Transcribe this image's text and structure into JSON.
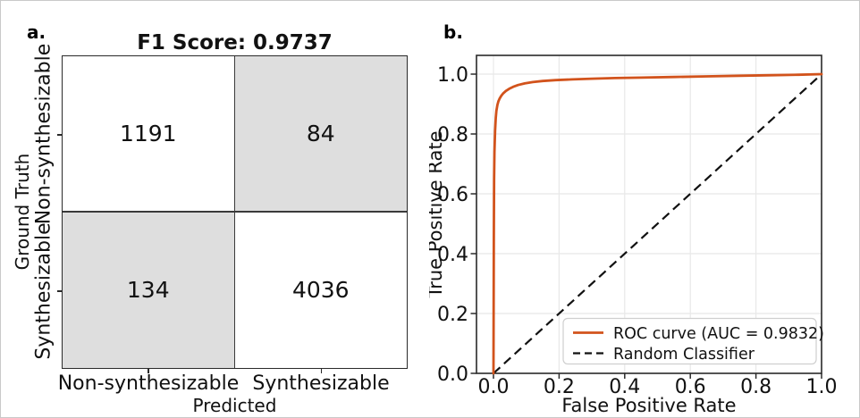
{
  "figure": {
    "panel_a_label": "a.",
    "panel_b_label": "b."
  },
  "chart_data": [
    {
      "type": "heatmap",
      "title": "F1 Score: 0.9737",
      "xlabel": "Predicted",
      "ylabel": "Ground Truth",
      "x_categories": [
        "Non-synthesizable",
        "Synthesizable"
      ],
      "y_categories": [
        "Non-synthesizable",
        "Synthesizable"
      ],
      "values": [
        [
          1191,
          84
        ],
        [
          134,
          4036
        ]
      ],
      "cell_colors": [
        [
          "#ffffff",
          "#dedede"
        ],
        [
          "#dedede",
          "#ffffff"
        ]
      ]
    },
    {
      "type": "line",
      "xlabel": "False Positive Rate",
      "ylabel": "True Positive Rate",
      "xlim": [
        -0.05,
        1.0
      ],
      "ylim": [
        0.0,
        1.06
      ],
      "x_ticks": [
        "0.0",
        "0.2",
        "0.4",
        "0.6",
        "0.8",
        "1.0"
      ],
      "y_ticks": [
        "0.0",
        "0.2",
        "0.4",
        "0.6",
        "0.8",
        "1.0"
      ],
      "grid": true,
      "grid_color": "#e8e8e8",
      "legend_position": "lower right",
      "series": [
        {
          "name": "ROC curve (AUC = 0.9832)",
          "color": "#d2531c",
          "style": "solid",
          "points": [
            [
              0,
              0
            ],
            [
              0.001,
              0.45
            ],
            [
              0.002,
              0.65
            ],
            [
              0.003,
              0.74
            ],
            [
              0.005,
              0.81
            ],
            [
              0.007,
              0.855
            ],
            [
              0.009,
              0.878
            ],
            [
              0.012,
              0.897
            ],
            [
              0.015,
              0.909
            ],
            [
              0.019,
              0.919
            ],
            [
              0.024,
              0.928
            ],
            [
              0.03,
              0.936
            ],
            [
              0.038,
              0.944
            ],
            [
              0.048,
              0.951
            ],
            [
              0.06,
              0.9575
            ],
            [
              0.075,
              0.9635
            ],
            [
              0.095,
              0.969
            ],
            [
              0.12,
              0.9735
            ],
            [
              0.15,
              0.977
            ],
            [
              0.19,
              0.98
            ],
            [
              0.24,
              0.9825
            ],
            [
              0.3,
              0.9848
            ],
            [
              0.37,
              0.9868
            ],
            [
              0.45,
              0.9885
            ],
            [
              0.55,
              0.9905
            ],
            [
              0.65,
              0.9925
            ],
            [
              0.75,
              0.9945
            ],
            [
              0.85,
              0.9965
            ],
            [
              0.93,
              0.998
            ],
            [
              1.0,
              1.0
            ]
          ]
        },
        {
          "name": "Random Classifier",
          "color": "#111111",
          "style": "dashed",
          "points": [
            [
              0,
              0
            ],
            [
              1,
              1
            ]
          ]
        }
      ]
    }
  ]
}
